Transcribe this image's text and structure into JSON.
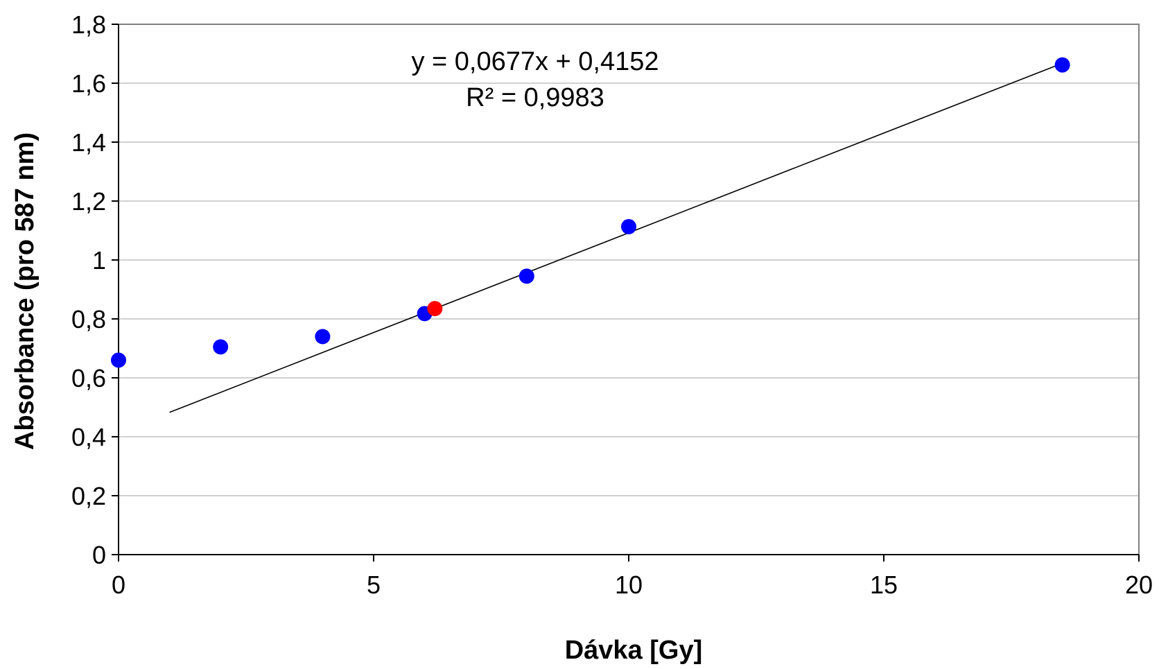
{
  "chart_data": {
    "type": "scatter",
    "xlabel": "Dávka [Gy]",
    "ylabel": "Absorbance  (pro 587 nm)",
    "xlim": [
      0,
      20
    ],
    "ylim": [
      0,
      1.8
    ],
    "xticks": [
      0,
      5,
      10,
      15,
      20
    ],
    "xtick_labels": [
      "0",
      "5",
      "10",
      "15",
      "20"
    ],
    "yticks": [
      0,
      0.2,
      0.4,
      0.6,
      0.8,
      1,
      1.2,
      1.4,
      1.6,
      1.8
    ],
    "ytick_labels": [
      "0",
      "0,2",
      "0,4",
      "0,6",
      "0,8",
      "1",
      "1,2",
      "1,4",
      "1,6",
      "1,8"
    ],
    "grid": "horizontal",
    "series": [
      {
        "color": "#0000ff",
        "points": [
          {
            "x": 0,
            "y": 0.66
          },
          {
            "x": 2,
            "y": 0.705
          },
          {
            "x": 4,
            "y": 0.74
          },
          {
            "x": 6,
            "y": 0.818
          },
          {
            "x": 8,
            "y": 0.945
          },
          {
            "x": 10,
            "y": 1.113
          },
          {
            "x": 18.5,
            "y": 1.662
          }
        ]
      },
      {
        "color": "#ff0000",
        "points": [
          {
            "x": 6.2,
            "y": 0.835
          }
        ]
      }
    ],
    "trendline": {
      "slope": 0.0677,
      "intercept": 0.4152,
      "x_start": 1,
      "x_end": 18.5,
      "color": "#000000",
      "equation": "y = 0,0677x  + 0,4152",
      "r_squared": "R² = 0,9983"
    },
    "colors": {
      "plot_border": "#808080",
      "gridline": "#c0c0c0",
      "axis": "#000000"
    }
  }
}
